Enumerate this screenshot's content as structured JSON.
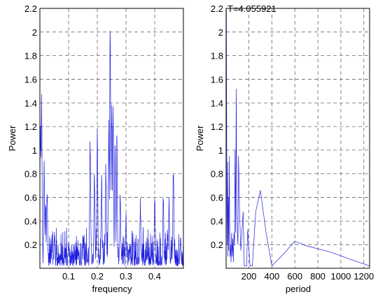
{
  "colors": {
    "background": "#ffffff",
    "trace": "#2020e0",
    "grid": "#666666",
    "axes": "#000000"
  },
  "chart_data": [
    {
      "type": "line",
      "title": "",
      "xlabel": "frequency",
      "ylabel": "Power",
      "xlim": [
        0,
        0.5
      ],
      "ylim": [
        0,
        2.2
      ],
      "xticks": [
        0.1,
        0.2,
        0.3,
        0.4
      ],
      "xtick_labels": [
        "0.1",
        "0.2",
        "0.3",
        "0.4"
      ],
      "yticks": [
        0.2,
        0.4,
        0.6,
        0.8,
        1,
        1.2,
        1.4,
        1.6,
        1.8,
        2,
        2.2
      ],
      "ytick_labels": [
        "0.2",
        "0.4",
        "0.6",
        "0.8",
        "1",
        "1.2",
        "1.4",
        "1.6",
        "1.8",
        "2",
        "2.2"
      ],
      "grid": true,
      "series": [
        {
          "peaks": [
            [
              0.002,
              1.5
            ],
            [
              0.006,
              1.52
            ],
            [
              0.015,
              0.95
            ],
            [
              0.02,
              0.6
            ],
            [
              0.025,
              0.7
            ],
            [
              0.05,
              0.3
            ],
            [
              0.1,
              0.22
            ],
            [
              0.15,
              0.3
            ],
            [
              0.175,
              1.25
            ],
            [
              0.19,
              0.9
            ],
            [
              0.2,
              1.2
            ],
            [
              0.215,
              0.8
            ],
            [
              0.23,
              1.0
            ],
            [
              0.24,
              1.4
            ],
            [
              0.245,
              2.2
            ],
            [
              0.25,
              1.6
            ],
            [
              0.255,
              1.55
            ],
            [
              0.262,
              1.2
            ],
            [
              0.268,
              1.23
            ],
            [
              0.28,
              0.7
            ],
            [
              0.3,
              0.5
            ],
            [
              0.35,
              0.6
            ],
            [
              0.4,
              0.7
            ],
            [
              0.43,
              0.65
            ],
            [
              0.45,
              0.65
            ],
            [
              0.465,
              0.96
            ],
            [
              0.49,
              0.3
            ]
          ]
        }
      ]
    },
    {
      "type": "line",
      "title": "",
      "annotation": "T=4.055921",
      "xlabel": "period",
      "ylabel": "Power",
      "xlim": [
        2,
        1250
      ],
      "ylim": [
        0,
        2.2
      ],
      "xticks": [
        200,
        400,
        600,
        800,
        1000,
        1200
      ],
      "xtick_labels": [
        "200",
        "400",
        "600",
        "800",
        "1000",
        "1200"
      ],
      "yticks": [
        0.2,
        0.4,
        0.6,
        0.8,
        1,
        1.2,
        1.4,
        1.6,
        1.8,
        2,
        2.2
      ],
      "ytick_labels": [
        "0.2",
        "0.4",
        "0.6",
        "0.8",
        "1",
        "1.2",
        "1.4",
        "1.6",
        "1.8",
        "2",
        "2.2"
      ],
      "grid": true,
      "series": [
        {
          "x": [
            4.06,
            10,
            15,
            18,
            22,
            25,
            30,
            35,
            40,
            45,
            50,
            55,
            60,
            65,
            70,
            75,
            80,
            85,
            90,
            95,
            100,
            105,
            110,
            120,
            130,
            150,
            160,
            180,
            190,
            210,
            230,
            260,
            300,
            350,
            400,
            500,
            600,
            700,
            900,
            1100,
            1250
          ],
          "y": [
            2.2,
            0.2,
            0.9,
            0.1,
            0.6,
            0.15,
            0.95,
            0.1,
            0.2,
            0.05,
            0.3,
            0.1,
            0.25,
            0.05,
            0.3,
            0.2,
            1.0,
            0.3,
            1.52,
            0.5,
            0.3,
            0.2,
            0.95,
            0.45,
            0.15,
            0.48,
            0.02,
            0.02,
            0.33,
            0.02,
            0.02,
            0.48,
            0.66,
            0.3,
            0.02,
            0.12,
            0.23,
            0.19,
            0.14,
            0.07,
            0.02
          ]
        }
      ]
    }
  ]
}
